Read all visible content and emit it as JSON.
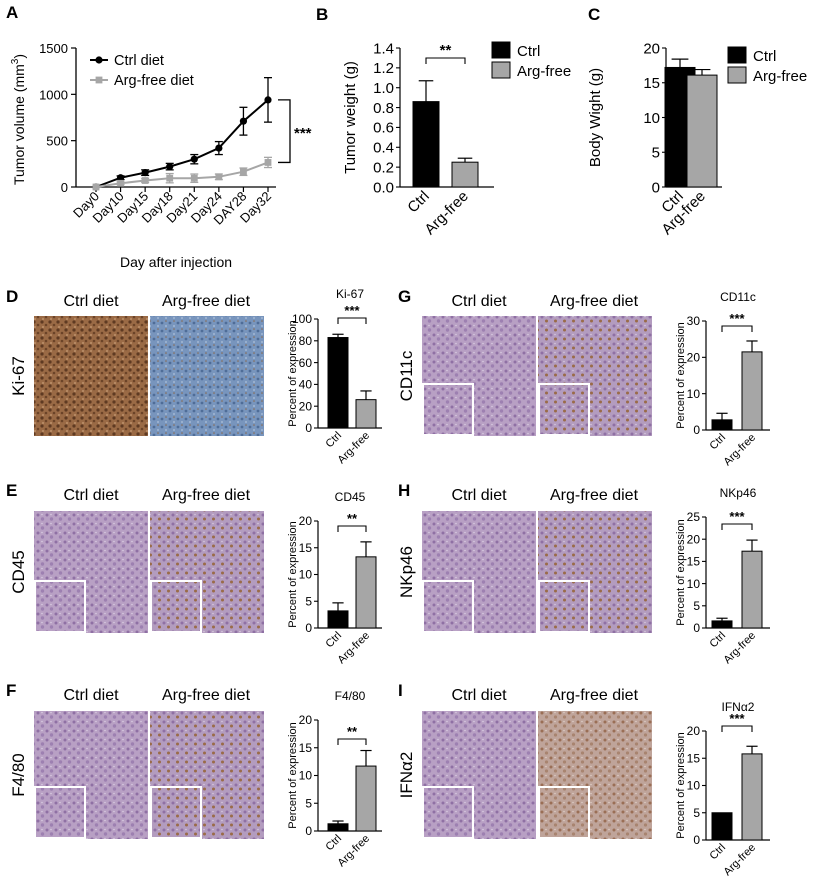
{
  "panels": {
    "A": "A",
    "B": "B",
    "C": "C",
    "D": "D",
    "E": "E",
    "F": "F",
    "G": "G",
    "H": "H",
    "I": "I"
  },
  "colors": {
    "ctrl": "#000000",
    "argfree": "#a6a6a6",
    "ki67_ctrl_tissue": "#8a5a3a",
    "ki67_arg_tissue": "#6f8fb8",
    "ihc_tissue": "#b59bc0",
    "ihc_tissue_dark": "#9c7fae",
    "stain_brown": "#8a5c34"
  },
  "conditions": {
    "ctrl": "Ctrl diet",
    "argfree": "Arg-free diet"
  },
  "chart_data": [
    {
      "id": "A",
      "type": "line",
      "xlabel": "Day after injection",
      "ylabel": "Tumor volume (mm",
      "ylabel_sup": "3",
      "ylabel_close": ")",
      "ylim": [
        0,
        1500
      ],
      "yticks": [
        "0",
        "500",
        "1000",
        "1500"
      ],
      "categories": [
        "Day0",
        "Day10",
        "Day15",
        "Day18",
        "Day21",
        "Day24",
        "DAY28",
        "Day32"
      ],
      "series": [
        {
          "name": "Ctrl diet",
          "values": [
            0,
            100,
            155,
            220,
            300,
            420,
            710,
            940
          ],
          "errors": [
            0,
            20,
            30,
            35,
            50,
            70,
            150,
            240
          ]
        },
        {
          "name": "Arg-free diet",
          "values": [
            0,
            40,
            70,
            95,
            95,
            110,
            165,
            265
          ],
          "errors": [
            0,
            15,
            20,
            50,
            45,
            30,
            40,
            55
          ]
        }
      ],
      "significance": "***"
    },
    {
      "id": "B",
      "type": "bar",
      "ylabel": "Tumor weight (g)",
      "ylim": [
        0,
        1.4
      ],
      "yticks": [
        "0.0",
        "0.2",
        "0.4",
        "0.6",
        "0.8",
        "1.0",
        "1.2",
        "1.4"
      ],
      "categories": [
        "Ctrl",
        "Arg-free"
      ],
      "values": [
        0.86,
        0.25
      ],
      "errors": [
        0.21,
        0.04
      ],
      "legend": [
        "Ctrl",
        "Arg-free"
      ],
      "significance": "**"
    },
    {
      "id": "C",
      "type": "bar",
      "ylabel": "Body Wight (g)",
      "ylim": [
        0,
        20
      ],
      "yticks": [
        "0",
        "5",
        "10",
        "15",
        "20"
      ],
      "categories": [
        "Ctrl",
        "Arg-free"
      ],
      "values": [
        17.2,
        16.1
      ],
      "errors": [
        1.2,
        0.8
      ],
      "legend": [
        "Ctrl",
        "Arg-free"
      ]
    },
    {
      "id": "D",
      "type": "bar",
      "title": "Ki-67",
      "ylabel": "Percent of expression",
      "ylim": [
        0,
        100
      ],
      "yticks": [
        "0",
        "20",
        "40",
        "60",
        "80",
        "100"
      ],
      "categories": [
        "Ctrl",
        "Arg-free"
      ],
      "values": [
        83,
        26
      ],
      "errors": [
        3,
        8
      ],
      "significance": "***",
      "side_label": "Ki-67"
    },
    {
      "id": "E",
      "type": "bar",
      "title": "CD45",
      "ylabel": "Percent of expression",
      "ylim": [
        0,
        20
      ],
      "yticks": [
        "0",
        "5",
        "10",
        "15",
        "20"
      ],
      "categories": [
        "Ctrl",
        "Arg-free"
      ],
      "values": [
        3.2,
        13.3
      ],
      "errors": [
        1.5,
        2.8
      ],
      "significance": "**",
      "side_label": "CD45"
    },
    {
      "id": "F",
      "type": "bar",
      "title": "F4/80",
      "ylabel": "Percent of expression",
      "ylim": [
        0,
        20
      ],
      "yticks": [
        "0",
        "5",
        "10",
        "15",
        "20"
      ],
      "categories": [
        "Ctrl",
        "Arg-free"
      ],
      "values": [
        1.3,
        11.7
      ],
      "errors": [
        0.5,
        2.8
      ],
      "significance": "**",
      "side_label": "F4/80"
    },
    {
      "id": "G",
      "type": "bar",
      "title": "CD11c",
      "ylabel": "Percent of expression",
      "ylim": [
        0,
        30
      ],
      "yticks": [
        "0",
        "10",
        "20",
        "30"
      ],
      "categories": [
        "Ctrl",
        "Arg-free"
      ],
      "values": [
        2.8,
        21.5
      ],
      "errors": [
        1.8,
        3.0
      ],
      "significance": "***",
      "side_label": "CD11c"
    },
    {
      "id": "H",
      "type": "bar",
      "title": "NKp46",
      "ylabel": "Percent of expression",
      "ylim": [
        0,
        25
      ],
      "yticks": [
        "0",
        "5",
        "10",
        "15",
        "20",
        "25"
      ],
      "categories": [
        "Ctrl",
        "Arg-free"
      ],
      "values": [
        1.6,
        17.3
      ],
      "errors": [
        0.6,
        2.5
      ],
      "significance": "***",
      "side_label": "NKp46"
    },
    {
      "id": "I",
      "type": "bar",
      "title": "IFNα2",
      "ylabel": "Percent of expression",
      "ylim": [
        0,
        20
      ],
      "yticks": [
        "0",
        "5",
        "10",
        "15",
        "20"
      ],
      "categories": [
        "Ctrl",
        "Arg-free"
      ],
      "values": [
        5.0,
        15.8
      ],
      "errors": [
        0,
        1.4
      ],
      "significance": "***",
      "side_label": "IFNα2"
    }
  ]
}
